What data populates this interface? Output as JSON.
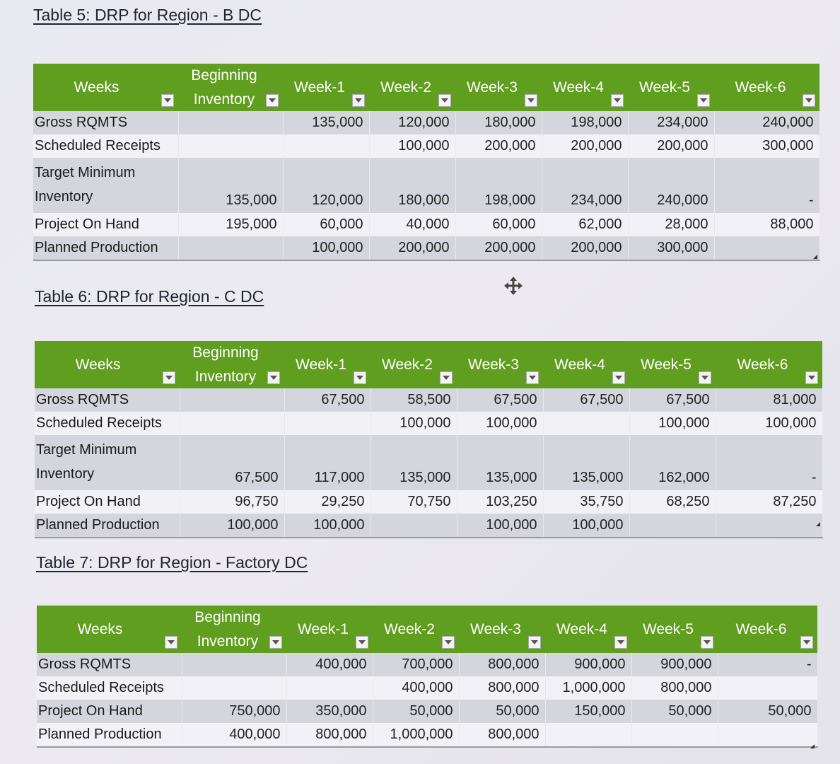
{
  "table5": {
    "caption": "Table 5: DRP for Region - B DC",
    "headers": {
      "weeks": "Weeks",
      "beginning_line1": "Beginning",
      "beginning_line2": "Inventory",
      "w1": "Week-1",
      "w2": "Week-2",
      "w3": "Week-3",
      "w4": "Week-4",
      "w5": "Week-5",
      "w6": "Week-6"
    },
    "rows": {
      "gross": {
        "label": "Gross RQMTS",
        "beg": "",
        "w1": "135,000",
        "w2": "120,000",
        "w3": "180,000",
        "w4": "198,000",
        "w5": "234,000",
        "w6": "240,000"
      },
      "sched": {
        "label": "Scheduled Receipts",
        "beg": "",
        "w1": "",
        "w2": "100,000",
        "w3": "200,000",
        "w4": "200,000",
        "w5": "200,000",
        "w6": "300,000"
      },
      "target": {
        "label_line1": "Target Minimum",
        "label_line2": "Inventory",
        "beg": "135,000",
        "w1": "120,000",
        "w2": "180,000",
        "w3": "198,000",
        "w4": "234,000",
        "w5": "240,000",
        "w6": "-"
      },
      "onhand": {
        "label": "Project On Hand",
        "beg": "195,000",
        "w1": "60,000",
        "w2": "40,000",
        "w3": "60,000",
        "w4": "62,000",
        "w5": "28,000",
        "w6": "88,000"
      },
      "planned": {
        "label": "Planned Production",
        "beg": "",
        "w1": "100,000",
        "w2": "200,000",
        "w3": "200,000",
        "w4": "200,000",
        "w5": "300,000",
        "w6": ""
      }
    }
  },
  "table6": {
    "caption": "Table 6: DRP for Region - C DC",
    "headers": {
      "weeks": "Weeks",
      "beginning_line1": "Beginning",
      "beginning_line2": "Inventory",
      "w1": "Week-1",
      "w2": "Week-2",
      "w3": "Week-3",
      "w4": "Week-4",
      "w5": "Week-5",
      "w6": "Week-6"
    },
    "rows": {
      "gross": {
        "label": "Gross RQMTS",
        "beg": "",
        "w1": "67,500",
        "w2": "58,500",
        "w3": "67,500",
        "w4": "67,500",
        "w5": "67,500",
        "w6": "81,000"
      },
      "sched": {
        "label": "Scheduled Receipts",
        "beg": "",
        "w1": "",
        "w2": "100,000",
        "w3": "100,000",
        "w4": "",
        "w5": "100,000",
        "w6": "100,000"
      },
      "target": {
        "label_line1": "Target Minimum",
        "label_line2": "Inventory",
        "beg": "67,500",
        "w1": "117,000",
        "w2": "135,000",
        "w3": "135,000",
        "w4": "135,000",
        "w5": "162,000",
        "w6": "-"
      },
      "onhand": {
        "label": "Project On Hand",
        "beg": "96,750",
        "w1": "29,250",
        "w2": "70,750",
        "w3": "103,250",
        "w4": "35,750",
        "w5": "68,250",
        "w6": "87,250"
      },
      "planned": {
        "label": "Planned Production",
        "beg": "100,000",
        "w1": "100,000",
        "w2": "",
        "w3": "100,000",
        "w4": "100,000",
        "w5": "",
        "w6": ""
      }
    }
  },
  "table7": {
    "caption": "Table 7: DRP for Region - Factory DC",
    "headers": {
      "weeks": "Weeks",
      "beginning_line1": "Beginning",
      "beginning_line2": "Inventory",
      "w1": "Week-1",
      "w2": "Week-2",
      "w3": "Week-3",
      "w4": "Week-4",
      "w5": "Week-5",
      "w6": "Week-6"
    },
    "rows": {
      "gross": {
        "label": "Gross RQMTS",
        "beg": "",
        "w1": "400,000",
        "w2": "700,000",
        "w3": "800,000",
        "w4": "900,000",
        "w5": "900,000",
        "w6": "-"
      },
      "sched": {
        "label": "Scheduled Receipts",
        "beg": "",
        "w1": "",
        "w2": "400,000",
        "w3": "800,000",
        "w4": "1,000,000",
        "w5": "800,000",
        "w6": ""
      },
      "onhand": {
        "label": "Project On Hand",
        "beg": "750,000",
        "w1": "350,000",
        "w2": "50,000",
        "w3": "50,000",
        "w4": "150,000",
        "w5": "50,000",
        "w6": "50,000"
      },
      "planned": {
        "label": "Planned Production",
        "beg": "400,000",
        "w1": "800,000",
        "w2": "1,000,000",
        "w3": "800,000",
        "w4": "",
        "w5": "",
        "w6": ""
      }
    }
  },
  "colors": {
    "header_green": "#5f9e1e",
    "row_shade": "#d5d5dd",
    "row_plain": "#f2f2f6"
  },
  "icons": {
    "move": "move-icon",
    "filter": "filter-dropdown-icon"
  }
}
